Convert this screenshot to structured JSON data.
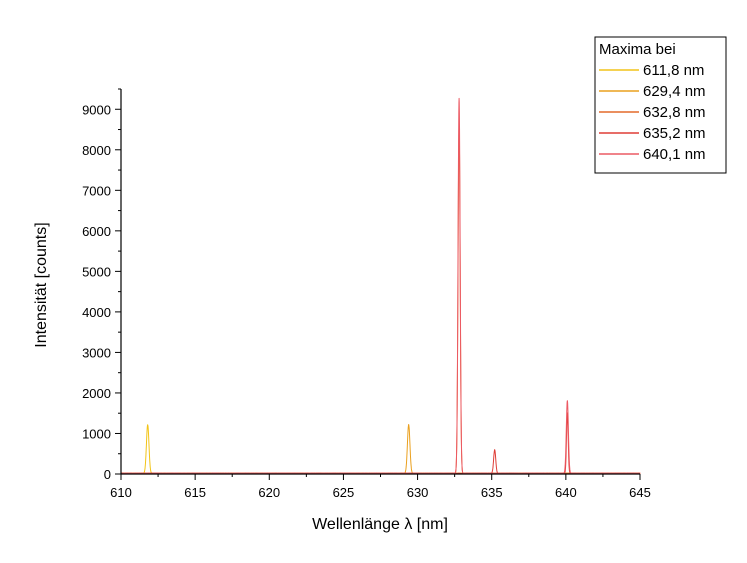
{
  "chart_data": {
    "type": "line",
    "title": "",
    "xlabel": "Wellenlänge λ [nm]",
    "ylabel": "Intensität [counts]",
    "xlim": [
      610,
      645
    ],
    "ylim": [
      0,
      9500
    ],
    "xticks": [
      610,
      615,
      620,
      625,
      630,
      635,
      640,
      645
    ],
    "yticks": [
      0,
      1000,
      2000,
      3000,
      4000,
      5000,
      6000,
      7000,
      8000,
      9000
    ],
    "grid": false,
    "legend": {
      "title": "Maxima bei",
      "placement": "top-right"
    },
    "series": [
      {
        "name": "611,8 nm",
        "color": "#f2c418",
        "peak_x": 611.8,
        "peak_y": 1200,
        "width": 0.12
      },
      {
        "name": "629,4 nm",
        "color": "#eaa01e",
        "peak_x": 629.4,
        "peak_y": 1200,
        "width": 0.12
      },
      {
        "name": "632,8 nm",
        "color": "#e36a2a",
        "peak_x": 632.8,
        "peak_y": 8550,
        "width": 0.1
      },
      {
        "name": "635,2 nm",
        "color": "#df3d36",
        "peak_x": 635.2,
        "peak_y": 580,
        "width": 0.1
      },
      {
        "name": "640,1 nm",
        "color": "#ec5a64",
        "peak_x": 640.1,
        "peak_y": 1800,
        "width": 0.1
      }
    ],
    "extra_peaks": [
      {
        "series": 4,
        "x": 632.8,
        "y": 9250,
        "width": 0.1
      },
      {
        "series": 3,
        "x": 640.1,
        "y": 1500,
        "width": 0.08
      }
    ]
  }
}
